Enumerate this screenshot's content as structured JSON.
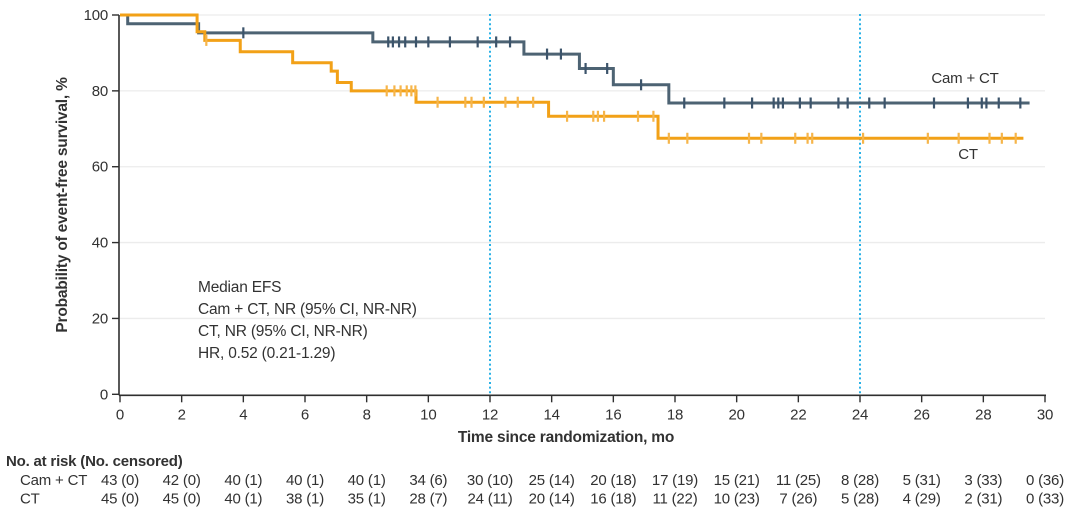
{
  "colors": {
    "background": "#ffffff",
    "axis": "#2f2f2f",
    "text": "#323232",
    "gridline": "#ececec",
    "reference_line": "#29b1e6",
    "cam_ct_line": "#4d6373",
    "cam_ct_censor": "#3c546b",
    "ct_line": "#f2a117",
    "ct_censor": "#f6b54a"
  },
  "chart_data": {
    "type": "line",
    "subtype": "kaplan-meier-step-curve",
    "title": "",
    "xlabel": "Time since randomization, mo",
    "ylabel": "Probability of event-free survival, %",
    "xlim": [
      0,
      30
    ],
    "ylim": [
      0,
      100
    ],
    "x_ticks": [
      0,
      2,
      4,
      6,
      8,
      10,
      12,
      14,
      16,
      18,
      20,
      22,
      24,
      26,
      28,
      30
    ],
    "y_ticks": [
      0,
      20,
      40,
      60,
      80,
      100
    ],
    "grid": "horizontal",
    "legend_position": "end-of-line-labels",
    "reference_lines_x": [
      12,
      24
    ],
    "annotation_lines": [
      "Median EFS",
      "Cam + CT, NR (95% CI, NR-NR)",
      "CT, NR (95% CI, NR-NR)",
      "HR, 0.52 (0.21-1.29)"
    ],
    "series": [
      {
        "name": "Cam + CT",
        "color_key": "cam_ct",
        "steps": [
          [
            0,
            100
          ],
          [
            0.25,
            97.7
          ],
          [
            2.55,
            95.3
          ],
          [
            8.2,
            92.9
          ],
          [
            13.1,
            89.7
          ],
          [
            14.9,
            85.9
          ],
          [
            16.0,
            81.6
          ],
          [
            17.8,
            76.8
          ]
        ],
        "end_x": 29.5,
        "censors": [
          [
            4.0,
            95.3
          ],
          [
            8.7,
            92.9
          ],
          [
            8.85,
            92.9
          ],
          [
            9.05,
            92.9
          ],
          [
            9.25,
            92.9
          ],
          [
            9.6,
            92.9
          ],
          [
            10.0,
            92.9
          ],
          [
            10.7,
            92.9
          ],
          [
            11.6,
            92.9
          ],
          [
            12.2,
            92.9
          ],
          [
            12.65,
            92.9
          ],
          [
            13.85,
            89.7
          ],
          [
            14.3,
            89.7
          ],
          [
            15.1,
            85.9
          ],
          [
            15.8,
            85.9
          ],
          [
            16.9,
            81.6
          ],
          [
            18.3,
            76.8
          ],
          [
            19.6,
            76.8
          ],
          [
            20.5,
            76.8
          ],
          [
            21.2,
            76.8
          ],
          [
            21.35,
            76.8
          ],
          [
            21.5,
            76.8
          ],
          [
            22.05,
            76.8
          ],
          [
            22.4,
            76.8
          ],
          [
            23.3,
            76.8
          ],
          [
            23.6,
            76.8
          ],
          [
            24.3,
            76.8
          ],
          [
            24.8,
            76.8
          ],
          [
            26.4,
            76.8
          ],
          [
            27.5,
            76.8
          ],
          [
            27.95,
            76.8
          ],
          [
            28.1,
            76.8
          ],
          [
            28.5,
            76.8
          ],
          [
            29.2,
            76.8
          ]
        ]
      },
      {
        "name": "CT",
        "color_key": "ct",
        "steps": [
          [
            0,
            100
          ],
          [
            2.5,
            95.6
          ],
          [
            2.75,
            93.3
          ],
          [
            3.9,
            90.3
          ],
          [
            5.6,
            87.4
          ],
          [
            6.85,
            85.2
          ],
          [
            7.05,
            82.2
          ],
          [
            7.5,
            80.0
          ],
          [
            9.6,
            77.0
          ],
          [
            13.9,
            73.3
          ],
          [
            17.45,
            67.5
          ]
        ],
        "end_x": 29.3,
        "censors": [
          [
            2.8,
            93.3
          ],
          [
            8.65,
            80.0
          ],
          [
            8.9,
            80.0
          ],
          [
            9.1,
            80.0
          ],
          [
            9.3,
            80.0
          ],
          [
            9.45,
            80.0
          ],
          [
            9.58,
            80.0
          ],
          [
            10.3,
            77.0
          ],
          [
            11.2,
            77.0
          ],
          [
            11.4,
            77.0
          ],
          [
            11.8,
            77.0
          ],
          [
            12.5,
            77.0
          ],
          [
            12.9,
            77.0
          ],
          [
            13.4,
            77.0
          ],
          [
            14.5,
            73.3
          ],
          [
            15.35,
            73.3
          ],
          [
            15.5,
            73.3
          ],
          [
            15.7,
            73.3
          ],
          [
            16.8,
            73.3
          ],
          [
            17.3,
            73.3
          ],
          [
            17.8,
            67.5
          ],
          [
            18.4,
            67.5
          ],
          [
            20.4,
            67.5
          ],
          [
            20.8,
            67.5
          ],
          [
            21.9,
            67.5
          ],
          [
            22.3,
            67.5
          ],
          [
            22.45,
            67.5
          ],
          [
            24.1,
            67.5
          ],
          [
            26.2,
            67.5
          ],
          [
            27.2,
            67.5
          ],
          [
            28.2,
            67.5
          ],
          [
            28.6,
            67.5
          ],
          [
            29.05,
            67.5
          ]
        ]
      }
    ],
    "risk_table": {
      "header": "No. at risk (No. censored)",
      "time_points": [
        0,
        2,
        4,
        6,
        8,
        10,
        12,
        14,
        16,
        18,
        20,
        22,
        24,
        26,
        28,
        30
      ],
      "rows": [
        {
          "label": "Cam + CT",
          "values": [
            "43 (0)",
            "42 (0)",
            "40 (1)",
            "40 (1)",
            "40 (1)",
            "34 (6)",
            "30 (10)",
            "25 (14)",
            "20 (18)",
            "17 (19)",
            "15 (21)",
            "11 (25)",
            "8 (28)",
            "5 (31)",
            "3 (33)",
            "0 (36)"
          ]
        },
        {
          "label": "CT",
          "values": [
            "45 (0)",
            "45 (0)",
            "40 (1)",
            "38 (1)",
            "35 (1)",
            "28 (7)",
            "24 (11)",
            "20 (14)",
            "16 (18)",
            "11 (22)",
            "10 (23)",
            "7 (26)",
            "5 (28)",
            "4 (29)",
            "2 (31)",
            "0 (33)"
          ]
        }
      ]
    }
  }
}
